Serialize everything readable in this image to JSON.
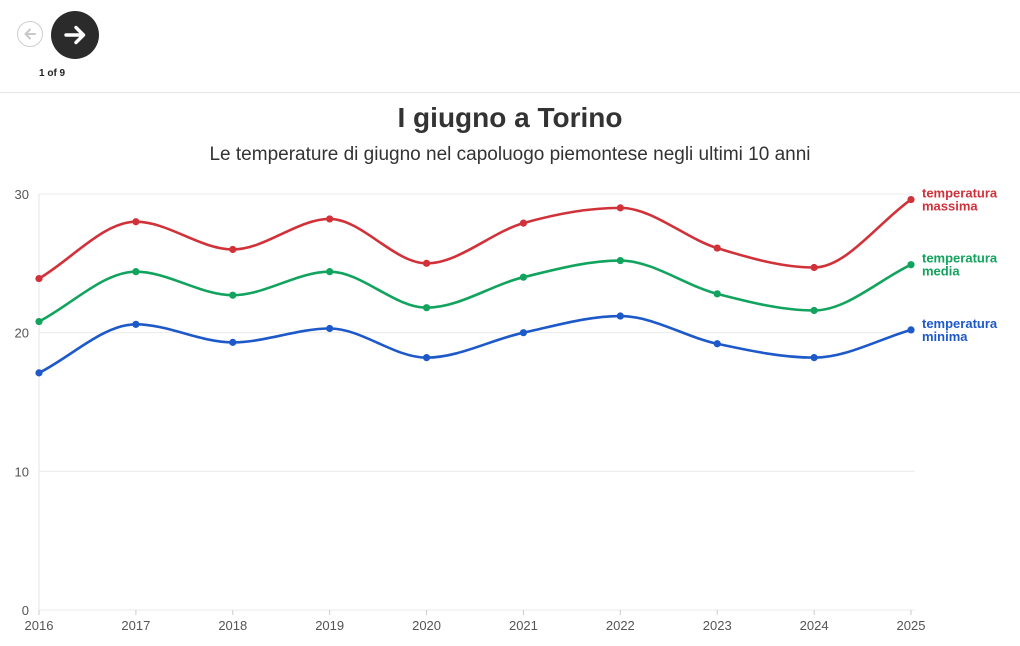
{
  "nav": {
    "prev_icon": "arrow-left-icon",
    "next_icon": "arrow-right-icon",
    "counter": "1 of 9"
  },
  "chart_data": {
    "type": "line",
    "title": "I giugno a Torino",
    "subtitle": "Le temperature di giugno nel capoluogo piemontese negli ultimi 10 anni",
    "x": [
      "2016",
      "2017",
      "2018",
      "2019",
      "2020",
      "2021",
      "2022",
      "2023",
      "2024",
      "2025"
    ],
    "ylim": [
      0,
      30
    ],
    "yticks": [
      "0",
      "10",
      "20",
      "30"
    ],
    "grid": true,
    "legend": "right",
    "series": [
      {
        "name_lines": [
          "temperatura",
          "massima"
        ],
        "color": "#d1323a",
        "values": [
          23.9,
          28.0,
          26.0,
          28.2,
          25.0,
          27.9,
          29.0,
          26.1,
          24.7,
          29.6
        ]
      },
      {
        "name_lines": [
          "temperatura",
          "media"
        ],
        "color": "#12a35e",
        "values": [
          20.8,
          24.4,
          22.7,
          24.4,
          21.8,
          24.0,
          25.2,
          22.8,
          21.6,
          24.9
        ]
      },
      {
        "name_lines": [
          "temperatura",
          "minima"
        ],
        "color": "#1d59c9",
        "values": [
          17.1,
          20.6,
          19.3,
          20.3,
          18.2,
          20.0,
          21.2,
          19.2,
          18.2,
          20.2
        ]
      }
    ]
  }
}
